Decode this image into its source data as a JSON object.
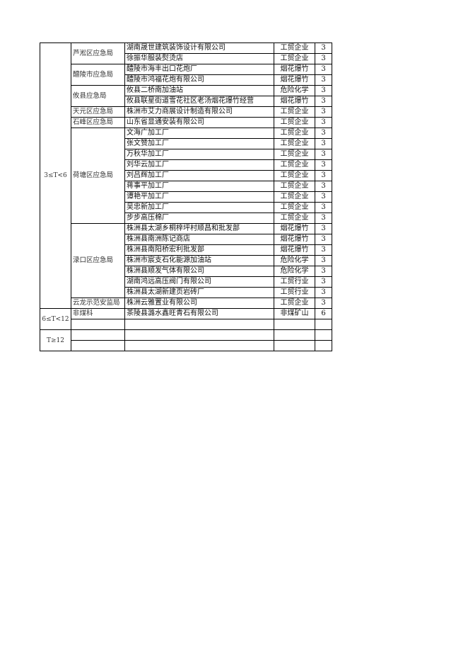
{
  "groups": [
    {
      "label": "3≤T<6",
      "departments": [
        {
          "name": "芦淞区应急局",
          "rows": [
            [
              "湖南晟世建筑装饰设计有限公司",
              "工贸企业",
              "3"
            ],
            [
              "徐振华服装熨烫店",
              "工贸企业",
              "3"
            ]
          ]
        },
        {
          "name": "醴陵市应急局",
          "rows": [
            [
              "醴陵市海丰出口花炮厂",
              "烟花爆竹",
              "3"
            ],
            [
              "醴陵市鸿福花炮有限公司",
              "烟花爆竹",
              "3"
            ]
          ]
        },
        {
          "name": "攸县应急局",
          "rows": [
            [
              "攸县二桥南加油站",
              "危险化学",
              "3"
            ],
            [
              "攸县联星街道雪花社区老汤烟花爆竹经营",
              "烟花爆竹",
              "3"
            ]
          ]
        },
        {
          "name": "天元区应急局",
          "rows": [
            [
              "株洲市艾力商展设计制造有限公司",
              "工贸企业",
              "3"
            ]
          ]
        },
        {
          "name": "石峰区应急局",
          "rows": [
            [
              "山东省显通安装有限公司",
              "工贸企业",
              "3"
            ]
          ]
        },
        {
          "name": "荷塘区应急局",
          "rows": [
            [
              "文海广加工厂",
              "工贸企业",
              "3"
            ],
            [
              "张文赞加工厂",
              "工贸企业",
              "3"
            ],
            [
              "万秋华加工厂",
              "工贸企业",
              "3"
            ],
            [
              "刘华云加工厂",
              "工贸企业",
              "3"
            ],
            [
              "刘吕辉加工厂",
              "工贸企业",
              "3"
            ],
            [
              "蒋事平加工厂",
              "工贸企业",
              "3"
            ],
            [
              "谭艳平加工厂",
              "工贸企业",
              "3"
            ],
            [
              "吴忠新加工厂",
              "工贸企业",
              "3"
            ],
            [
              "步步高压棉厂",
              "工贸企业",
              "3"
            ]
          ]
        },
        {
          "name": "渌口区应急局",
          "rows": [
            [
              "株洲县太湖乡桐梓坪村顺昌和批发部",
              "烟花爆竹",
              "3"
            ],
            [
              "株洲县南洲陈记商店",
              "烟花爆竹",
              "3"
            ],
            [
              "株洲县南阳桥宏利批发部",
              "烟花爆竹",
              "3"
            ],
            [
              "株洲市宸支石化能源加油站",
              "危险化学",
              "3"
            ],
            [
              "株洲县顺发气体有限公司",
              "危险化学",
              "3"
            ],
            [
              "湖南鸿远高压阀门有限公司",
              "工贸行业",
              "3"
            ],
            [
              "株洲县太湖新建页岩砖厂",
              "工贸行业",
              "3"
            ]
          ]
        },
        {
          "name": "云龙示范安监局",
          "rows": [
            [
              "株洲云雅置业有限公司",
              "工贸企业",
              "3"
            ]
          ]
        }
      ]
    },
    {
      "label": "6≤T<12",
      "departments": [
        {
          "name": "非煤科",
          "rows": [
            [
              "茶陵县潞水鑫旺青石有限公司",
              "非煤矿山",
              "6"
            ]
          ]
        },
        {
          "name": "",
          "rows": [
            [
              "",
              "",
              ""
            ]
          ]
        }
      ]
    },
    {
      "label": "T≥12",
      "departments": [
        {
          "name": "",
          "rows": [
            [
              "",
              "",
              ""
            ]
          ]
        },
        {
          "name": "",
          "rows": [
            [
              "",
              "",
              ""
            ]
          ]
        }
      ]
    }
  ]
}
